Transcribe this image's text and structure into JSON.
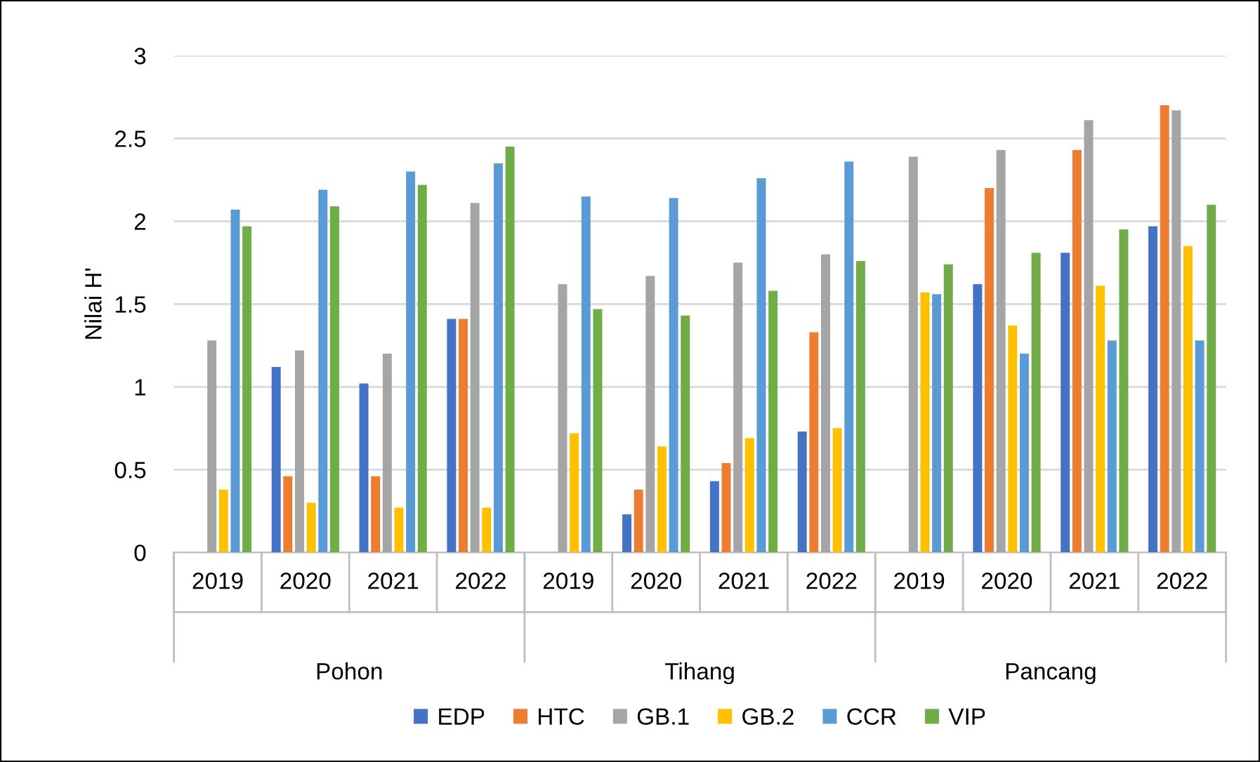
{
  "chart_data": {
    "type": "bar",
    "ylabel": "Nilai H'",
    "categories": [
      "2019",
      "2020",
      "2021",
      "2022",
      "2019",
      "2020",
      "2021",
      "2022",
      "2019",
      "2020",
      "2021",
      "2022"
    ],
    "annotations": [
      "Pohon",
      "Tihang",
      "Pancang"
    ],
    "series": [
      {
        "name": "EDP",
        "color": "#4472c4",
        "values": [
          null,
          1.12,
          1.02,
          1.41,
          null,
          0.23,
          0.43,
          0.73,
          null,
          1.62,
          1.81,
          1.97
        ]
      },
      {
        "name": "HTC",
        "color": "#ed7d31",
        "values": [
          null,
          0.46,
          0.46,
          1.41,
          null,
          0.38,
          0.54,
          1.33,
          null,
          2.2,
          2.43,
          2.7
        ]
      },
      {
        "name": "GB.1",
        "color": "#a5a5a5",
        "values": [
          1.28,
          1.22,
          1.2,
          2.11,
          1.62,
          1.67,
          1.75,
          1.8,
          2.39,
          2.43,
          2.61,
          2.67
        ]
      },
      {
        "name": "GB.2",
        "color": "#ffc000",
        "values": [
          0.38,
          0.3,
          0.27,
          0.27,
          0.72,
          0.64,
          0.69,
          0.75,
          1.57,
          1.37,
          1.61,
          1.85
        ]
      },
      {
        "name": "CCR",
        "color": "#5b9bd5",
        "values": [
          2.07,
          2.19,
          2.3,
          2.35,
          2.15,
          2.14,
          2.26,
          2.36,
          1.56,
          1.2,
          1.28,
          1.28
        ]
      },
      {
        "name": "VIP",
        "color": "#70ad47",
        "values": [
          1.97,
          2.09,
          2.22,
          2.45,
          1.47,
          1.43,
          1.58,
          1.76,
          1.74,
          1.81,
          1.95,
          2.1
        ]
      }
    ],
    "ylim": [
      0,
      3
    ],
    "yticks": [
      0,
      0.5,
      1,
      1.5,
      2,
      2.5,
      3
    ],
    "grid": "y",
    "legend": "bottom"
  }
}
